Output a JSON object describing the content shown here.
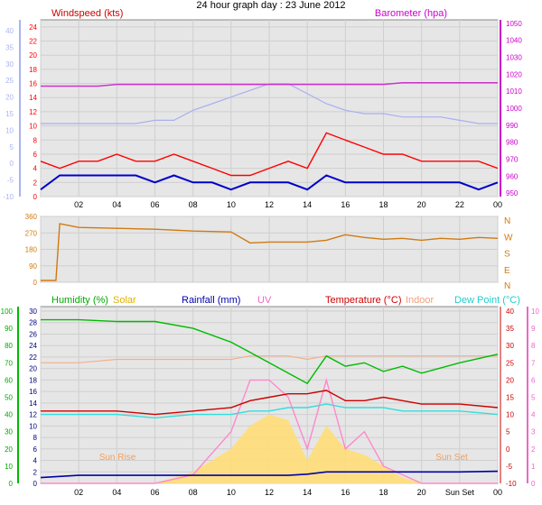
{
  "title": "24 hour graph day : 23 June 2012",
  "colors": {
    "wind_axis": "#aab4f0",
    "wind_scale": "#ff0000",
    "baro": "#cc00cc",
    "gust": "#ff0000",
    "speed": "#0000cc",
    "baro_line": "#cc33cc",
    "temp_light": "#a8b0f0",
    "direction": "#d07a10",
    "humidity": "#00bb00",
    "solar": "#ffdd77",
    "rainfall": "#0000aa",
    "uv": "#ff88cc",
    "temperature": "#cc0000",
    "indoor": "#f5b08a",
    "dewpoint": "#33dddd",
    "panel_bg": "#e6e6e6",
    "grid": "#cfcfcf"
  },
  "x_ticks": [
    "02",
    "04",
    "06",
    "08",
    "10",
    "12",
    "14",
    "16",
    "18",
    "20",
    "22",
    "00"
  ],
  "x_ticks_bottom": [
    "02",
    "04",
    "06",
    "08",
    "10",
    "12",
    "14",
    "16",
    "18",
    "20",
    "Sun Set",
    "00"
  ],
  "chart_data": [
    {
      "type": "line",
      "title": "24 hour graph day : 23 June 2012",
      "left_label": "Windspeed (kts)",
      "right_label": "Barometer (hpa)",
      "left_ticks": [
        "24",
        "22",
        "20",
        "18",
        "16",
        "14",
        "12",
        "10",
        "8",
        "6",
        "4",
        "2",
        "0"
      ],
      "left_outer_ticks": [
        "40",
        "35",
        "30",
        "25",
        "20",
        "15",
        "10",
        "5",
        "0",
        "-5",
        "-10"
      ],
      "right_ticks": [
        "1050",
        "1040",
        "1030",
        "1020",
        "1010",
        "1000",
        "990",
        "980",
        "970",
        "960",
        "950"
      ],
      "ylim_left": [
        0,
        25
      ],
      "ylim_right": [
        948,
        1052
      ],
      "x_hours": [
        0,
        1,
        2,
        3,
        4,
        5,
        6,
        7,
        8,
        9,
        10,
        11,
        12,
        13,
        14,
        15,
        16,
        17,
        18,
        19,
        20,
        21,
        22,
        23,
        24
      ],
      "series": [
        {
          "name": "Gust",
          "values": [
            5,
            4,
            5,
            5,
            6,
            5,
            5,
            6,
            5,
            4,
            3,
            3,
            4,
            5,
            4,
            9,
            8,
            7,
            6,
            6,
            5,
            5,
            5,
            5,
            4
          ]
        },
        {
          "name": "Wind Speed",
          "values": [
            1,
            3,
            3,
            3,
            3,
            3,
            2,
            3,
            2,
            2,
            1,
            2,
            2,
            2,
            1,
            3,
            2,
            2,
            2,
            2,
            2,
            2,
            2,
            1,
            2
          ]
        },
        {
          "name": "Barometer",
          "values": [
            1013,
            1013,
            1013,
            1013,
            1014,
            1014,
            1014,
            1014,
            1014,
            1014,
            1014,
            1014,
            1014,
            1014,
            1014,
            1014,
            1014,
            1014,
            1014,
            1015,
            1015,
            1015,
            1015,
            1015,
            1015
          ]
        },
        {
          "name": "Outer",
          "values": [
            12,
            12,
            12,
            12,
            12,
            12,
            13,
            13,
            16,
            18,
            20,
            22,
            24,
            24,
            21,
            18,
            16,
            15,
            15,
            14,
            14,
            14,
            13,
            12,
            12
          ]
        }
      ]
    },
    {
      "type": "line",
      "left_ticks": [
        "360",
        "270",
        "180",
        "90",
        "0"
      ],
      "right_labels": [
        "N",
        "W",
        "S",
        "E",
        "N"
      ],
      "ylim": [
        0,
        360
      ],
      "x_hours": [
        0,
        0.8,
        1,
        2,
        4,
        6,
        8,
        10,
        11,
        12,
        13,
        14,
        15,
        16,
        17,
        18,
        19,
        20,
        21,
        22,
        23,
        24
      ],
      "series": [
        {
          "name": "Direction",
          "values": [
            10,
            10,
            320,
            300,
            295,
            290,
            280,
            275,
            215,
            220,
            220,
            220,
            230,
            260,
            245,
            235,
            240,
            230,
            240,
            235,
            245,
            240
          ]
        }
      ]
    },
    {
      "type": "line",
      "labels": {
        "humidity": "Humidity (%)",
        "solar": "Solar",
        "rainfall": "Rainfall (mm)",
        "uv": "UV",
        "temperature": "Temperature (°C)",
        "indoor": "Indoor",
        "dewpoint": "Dew Point (°C)"
      },
      "sunrise_label": "Sun Rise",
      "sunset_label": "Sun Set",
      "axis_humidity": [
        "100",
        "90",
        "80",
        "70",
        "60",
        "50",
        "40",
        "30",
        "20",
        "10",
        "0"
      ],
      "axis_rain": [
        "30",
        "28",
        "26",
        "24",
        "22",
        "20",
        "18",
        "16",
        "14",
        "12",
        "10",
        "8",
        "6",
        "4",
        "2",
        "0"
      ],
      "axis_temp": [
        "40",
        "35",
        "30",
        "25",
        "20",
        "15",
        "10",
        "5",
        "0",
        "-5",
        "-10"
      ],
      "axis_uv": [
        "10",
        "9",
        "8",
        "7",
        "6",
        "5",
        "4",
        "3",
        "2",
        "1",
        "0"
      ],
      "x_hours": [
        0,
        2,
        4,
        6,
        8,
        10,
        11,
        12,
        13,
        14,
        15,
        16,
        17,
        18,
        19,
        20,
        22,
        24
      ],
      "series": [
        {
          "name": "Humidity",
          "values": [
            95,
            95,
            94,
            94,
            90,
            82,
            76,
            70,
            64,
            58,
            74,
            68,
            70,
            65,
            68,
            64,
            70,
            75
          ]
        },
        {
          "name": "Temperature",
          "values": [
            11,
            11,
            11,
            10,
            11,
            12,
            14,
            15,
            16,
            16,
            17,
            14,
            14,
            15,
            14,
            13,
            13,
            12
          ]
        },
        {
          "name": "Dew Point",
          "values": [
            10,
            10,
            10,
            9,
            10,
            10,
            11,
            11,
            12,
            12,
            13,
            12,
            12,
            12,
            11,
            11,
            11,
            10
          ]
        },
        {
          "name": "Indoor",
          "values": [
            25,
            25,
            26,
            26,
            26,
            26,
            27,
            27,
            27,
            26,
            27,
            27,
            27,
            27,
            27,
            27,
            27,
            27
          ]
        },
        {
          "name": "Rainfall",
          "values": [
            1,
            1.4,
            1.4,
            1.4,
            1.4,
            1.4,
            1.4,
            1.4,
            1.4,
            1.6,
            2,
            2,
            2,
            2,
            2,
            2,
            2,
            2.1
          ]
        },
        {
          "name": "UV",
          "values": [
            0,
            0,
            0,
            0,
            0.5,
            3,
            6,
            6,
            5,
            2,
            6,
            2,
            3,
            1,
            0.5,
            0,
            0,
            0
          ]
        },
        {
          "name": "Solar",
          "values": [
            0,
            0,
            0,
            0,
            2,
            6,
            10,
            12,
            11,
            4,
            10,
            6,
            5,
            3,
            1,
            0,
            0,
            0
          ]
        }
      ]
    }
  ]
}
